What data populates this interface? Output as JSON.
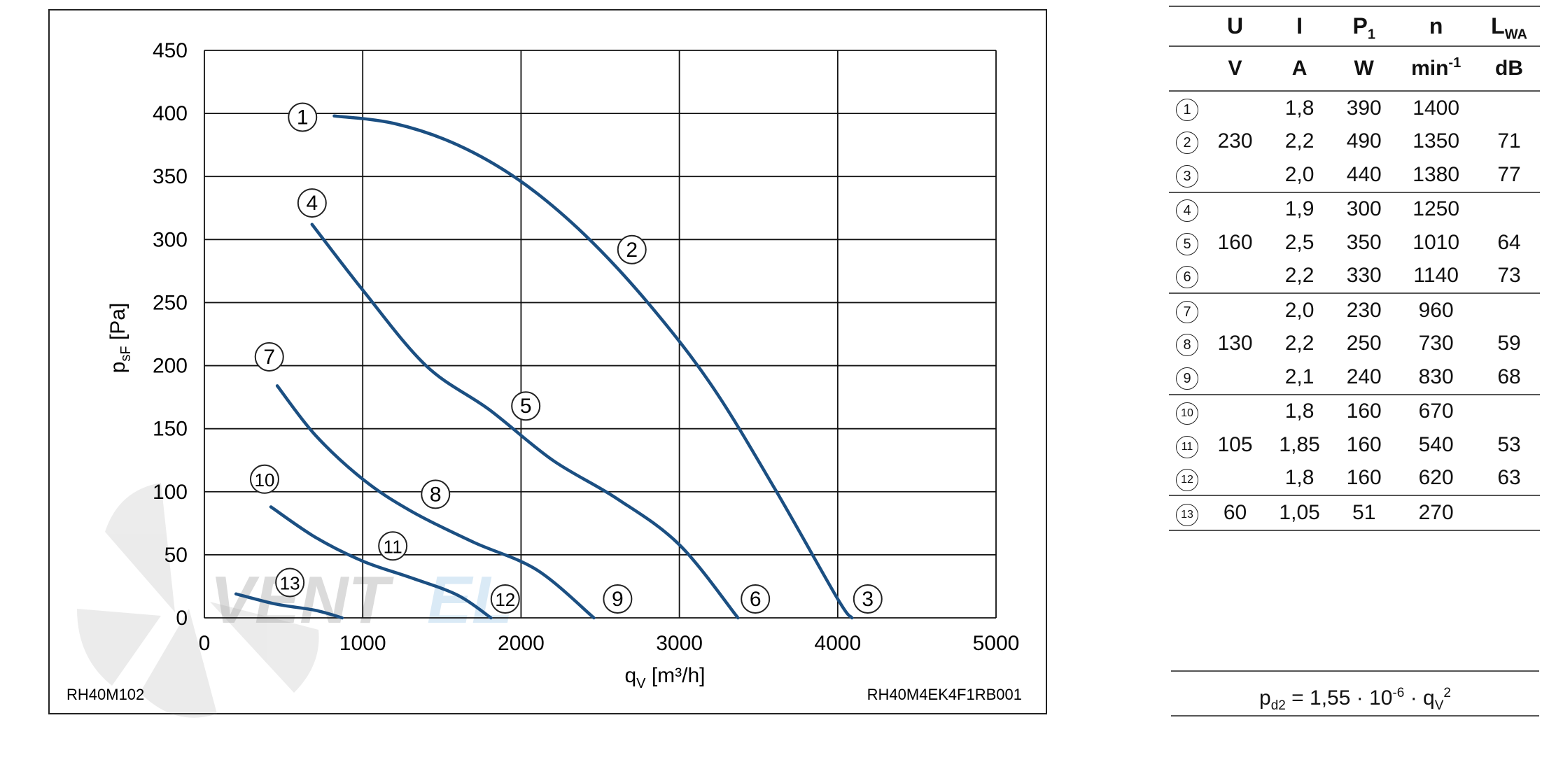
{
  "chart_data": {
    "type": "line",
    "xlabel": "qV [m³/h]",
    "ylabel": "psF [Pa]",
    "xlim": [
      0,
      5000
    ],
    "ylim": [
      0,
      450
    ],
    "x_ticks": [
      0,
      1000,
      2000,
      3000,
      4000,
      5000
    ],
    "y_ticks": [
      0,
      50,
      100,
      150,
      200,
      250,
      300,
      350,
      400,
      450
    ],
    "grid": true,
    "line_color": "#1b4f82",
    "footer_left": "RH40M102",
    "footer_right": "RH40M4EK4F1RB001",
    "watermark": "VENTEL",
    "series": [
      {
        "x": [
          820,
          1200,
          1600,
          2000,
          2400,
          2800,
          3200,
          3600,
          4000,
          4090
        ],
        "y": [
          398,
          392,
          375,
          346,
          304,
          250,
          185,
          103,
          15,
          0
        ]
      },
      {
        "x": [
          680,
          1000,
          1400,
          1800,
          2200,
          2600,
          3000,
          3370
        ],
        "y": [
          312,
          260,
          200,
          165,
          125,
          95,
          58,
          0
        ]
      },
      {
        "x": [
          460,
          700,
          1000,
          1300,
          1700,
          2100,
          2460
        ],
        "y": [
          184,
          145,
          110,
          85,
          60,
          38,
          0
        ]
      },
      {
        "x": [
          420,
          700,
          1000,
          1300,
          1600,
          1810
        ],
        "y": [
          88,
          64,
          45,
          32,
          18,
          0
        ]
      },
      {
        "x": [
          200,
          450,
          700,
          870
        ],
        "y": [
          19,
          11,
          6,
          0
        ]
      }
    ],
    "point_markers": [
      {
        "label": "1",
        "x": 620,
        "y": 397
      },
      {
        "label": "2",
        "x": 2700,
        "y": 292
      },
      {
        "label": "3",
        "x": 4190,
        "y": 15
      },
      {
        "label": "4",
        "x": 680,
        "y": 329
      },
      {
        "label": "5",
        "x": 2030,
        "y": 168
      },
      {
        "label": "6",
        "x": 3480,
        "y": 15
      },
      {
        "label": "7",
        "x": 410,
        "y": 207
      },
      {
        "label": "8",
        "x": 1460,
        "y": 98
      },
      {
        "label": "9",
        "x": 2610,
        "y": 15
      },
      {
        "label": "10",
        "x": 380,
        "y": 110
      },
      {
        "label": "11",
        "x": 1190,
        "y": 57
      },
      {
        "label": "12",
        "x": 1900,
        "y": 15
      },
      {
        "label": "13",
        "x": 540,
        "y": 28
      }
    ]
  },
  "table": {
    "header_symbols": [
      "U",
      "I",
      "P1",
      "n",
      "LWA"
    ],
    "header_units": [
      "V",
      "A",
      "W",
      "min-1",
      "dB"
    ],
    "rows": [
      {
        "id": "1",
        "U": "",
        "I": "1,8",
        "P1": "390",
        "n": "1400",
        "LWA": ""
      },
      {
        "id": "2",
        "U": "230",
        "I": "2,2",
        "P1": "490",
        "n": "1350",
        "LWA": "71"
      },
      {
        "id": "3",
        "U": "",
        "I": "2,0",
        "P1": "440",
        "n": "1380",
        "LWA": "77"
      },
      {
        "id": "4",
        "U": "",
        "I": "1,9",
        "P1": "300",
        "n": "1250",
        "LWA": ""
      },
      {
        "id": "5",
        "U": "160",
        "I": "2,5",
        "P1": "350",
        "n": "1010",
        "LWA": "64"
      },
      {
        "id": "6",
        "U": "",
        "I": "2,2",
        "P1": "330",
        "n": "1140",
        "LWA": "73"
      },
      {
        "id": "7",
        "U": "",
        "I": "2,0",
        "P1": "230",
        "n": "960",
        "LWA": ""
      },
      {
        "id": "8",
        "U": "130",
        "I": "2,2",
        "P1": "250",
        "n": "730",
        "LWA": "59"
      },
      {
        "id": "9",
        "U": "",
        "I": "2,1",
        "P1": "240",
        "n": "830",
        "LWA": "68"
      },
      {
        "id": "10",
        "U": "",
        "I": "1,8",
        "P1": "160",
        "n": "670",
        "LWA": ""
      },
      {
        "id": "11",
        "U": "105",
        "I": "1,85",
        "P1": "160",
        "n": "540",
        "LWA": "53"
      },
      {
        "id": "12",
        "U": "",
        "I": "1,8",
        "P1": "160",
        "n": "620",
        "LWA": "63"
      },
      {
        "id": "13",
        "U": "60",
        "I": "1,05",
        "P1": "51",
        "n": "270",
        "LWA": ""
      }
    ]
  },
  "formula": {
    "lhs": "p",
    "lhs_sub": "d2",
    "coefficient": " = 1,55 · 10",
    "exponent": "-6",
    "var": " · q",
    "var_sub": "V",
    "var_sup": "2"
  }
}
